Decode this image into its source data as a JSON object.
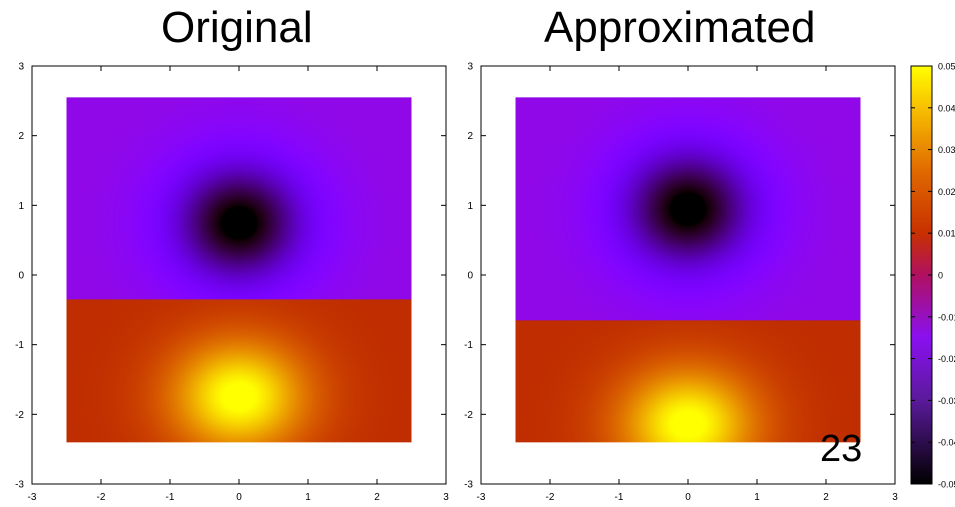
{
  "slide": {
    "title_left": "Original",
    "title_right": "Approximated",
    "page_number": "23"
  },
  "chart_data": [
    {
      "type": "heatmap",
      "title": "Original",
      "xlim": [
        -3,
        3
      ],
      "ylim": [
        -3,
        3
      ],
      "x_ticks": [
        -3,
        -2,
        -1,
        0,
        1,
        2,
        3
      ],
      "y_ticks": [
        -3,
        -2,
        -1,
        0,
        1,
        2,
        3
      ],
      "data_extent": {
        "x": [
          -2.5,
          2.5
        ],
        "y": [
          -2.4,
          2.55
        ]
      },
      "field": {
        "description": "values in data units",
        "minimum": {
          "x": 0.0,
          "y": 0.75,
          "value": -0.05
        },
        "maximum": {
          "x": 0.0,
          "y": -1.75,
          "value": 0.05
        },
        "zero_line_y": -0.35
      },
      "colormap": "gnuplot-pm3d"
    },
    {
      "type": "heatmap",
      "title": "Approximated",
      "xlim": [
        -3,
        3
      ],
      "ylim": [
        -3,
        3
      ],
      "x_ticks": [
        -3,
        -2,
        -1,
        0,
        1,
        2,
        3
      ],
      "y_ticks": [
        -3,
        -2,
        -1,
        0,
        1,
        2,
        3
      ],
      "data_extent": {
        "x": [
          -2.5,
          2.5
        ],
        "y": [
          -2.4,
          2.55
        ]
      },
      "field": {
        "description": "values in data units",
        "minimum": {
          "x": 0.0,
          "y": 0.95,
          "value": -0.05
        },
        "maximum": {
          "x": 0.0,
          "y": -2.15,
          "value": 0.05
        },
        "zero_line_y": -0.65
      },
      "colormap": "gnuplot-pm3d"
    }
  ],
  "colorbar": {
    "range": [
      -0.05,
      0.05
    ],
    "tick_labels": [
      "0.05",
      "0.04",
      "0.03",
      "0.02",
      "0.01",
      "0",
      "-0.01",
      "-0.02",
      "-0.03",
      "-0.04",
      "-0.05"
    ]
  }
}
